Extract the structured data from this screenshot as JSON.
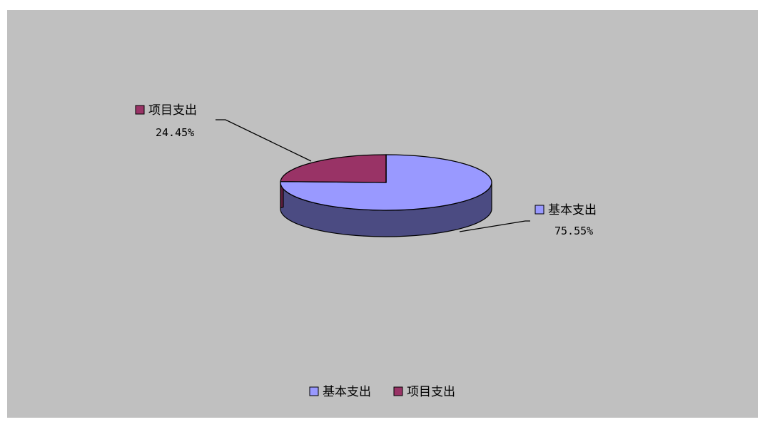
{
  "chart_data": {
    "type": "pie",
    "style": "3d",
    "categories": [
      "基本支出",
      "项目支出"
    ],
    "values": [
      75.55,
      24.45
    ],
    "data_labels": [
      "75.55%",
      "24.45%"
    ],
    "colors": {
      "基本支出": {
        "top": "#9999ff",
        "side": "#4b4b82"
      },
      "项目支出": {
        "top": "#993366",
        "side": "#5c1e3e"
      }
    },
    "legend": {
      "position": "bottom",
      "entries": [
        "基本支出",
        "项目支出"
      ]
    },
    "background": "#c0c0c0"
  }
}
